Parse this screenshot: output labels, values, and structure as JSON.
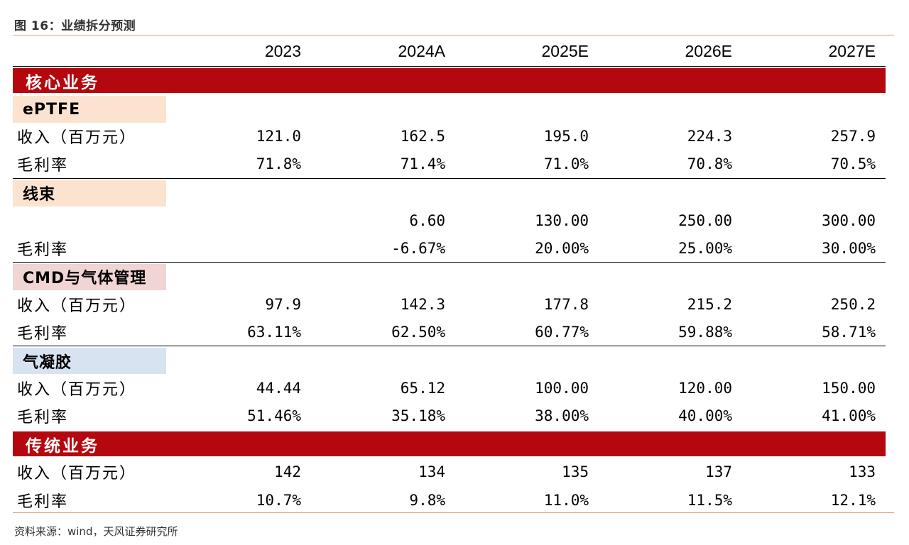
{
  "figure": {
    "title": "图 16：业绩拆分预测",
    "source": "资料来源：wind，天风证券研究所"
  },
  "columns": [
    "2023",
    "2024A",
    "2025E",
    "2026E",
    "2027E"
  ],
  "colors": {
    "section_bar": "#b5070e",
    "rule": "#d8a272",
    "sub_peach": "#fbe3d0",
    "sub_pink": "#f1d4d4",
    "sub_blue": "#d7e3f0"
  },
  "sections": {
    "core": "核心业务",
    "legacy": "传统业务"
  },
  "eptfe": {
    "title": "ePTFE",
    "revenue_label": "收入（百万元）",
    "revenue": [
      "121.0",
      "162.5",
      "195.0",
      "224.3",
      "257.9"
    ],
    "margin_label": "毛利率",
    "margin": [
      "71.8%",
      "71.4%",
      "71.0%",
      "70.8%",
      "70.5%"
    ]
  },
  "harness": {
    "title": "线束",
    "revenue_label": "",
    "revenue": [
      "",
      "6.60",
      "130.00",
      "250.00",
      "300.00"
    ],
    "margin_label": "毛利率",
    "margin": [
      "",
      "-6.67%",
      "20.00%",
      "25.00%",
      "30.00%"
    ]
  },
  "cmd": {
    "title": "CMD与气体管理",
    "revenue_label": "收入（百万元）",
    "revenue": [
      "97.9",
      "142.3",
      "177.8",
      "215.2",
      "250.2"
    ],
    "margin_label": "毛利率",
    "margin": [
      "63.11%",
      "62.50%",
      "60.77%",
      "59.88%",
      "58.71%"
    ]
  },
  "aerogel": {
    "title": "气凝胶",
    "revenue_label": "收入（百万元）",
    "revenue": [
      "44.44",
      "65.12",
      "100.00",
      "120.00",
      "150.00"
    ],
    "margin_label": "毛利率",
    "margin": [
      "51.46%",
      "35.18%",
      "38.00%",
      "40.00%",
      "41.00%"
    ]
  },
  "legacy": {
    "revenue_label": "收入（百万元）",
    "revenue": [
      "142",
      "134",
      "135",
      "137",
      "133"
    ],
    "margin_label": "毛利率",
    "margin": [
      "10.7%",
      "9.8%",
      "11.0%",
      "11.5%",
      "12.1%"
    ]
  }
}
